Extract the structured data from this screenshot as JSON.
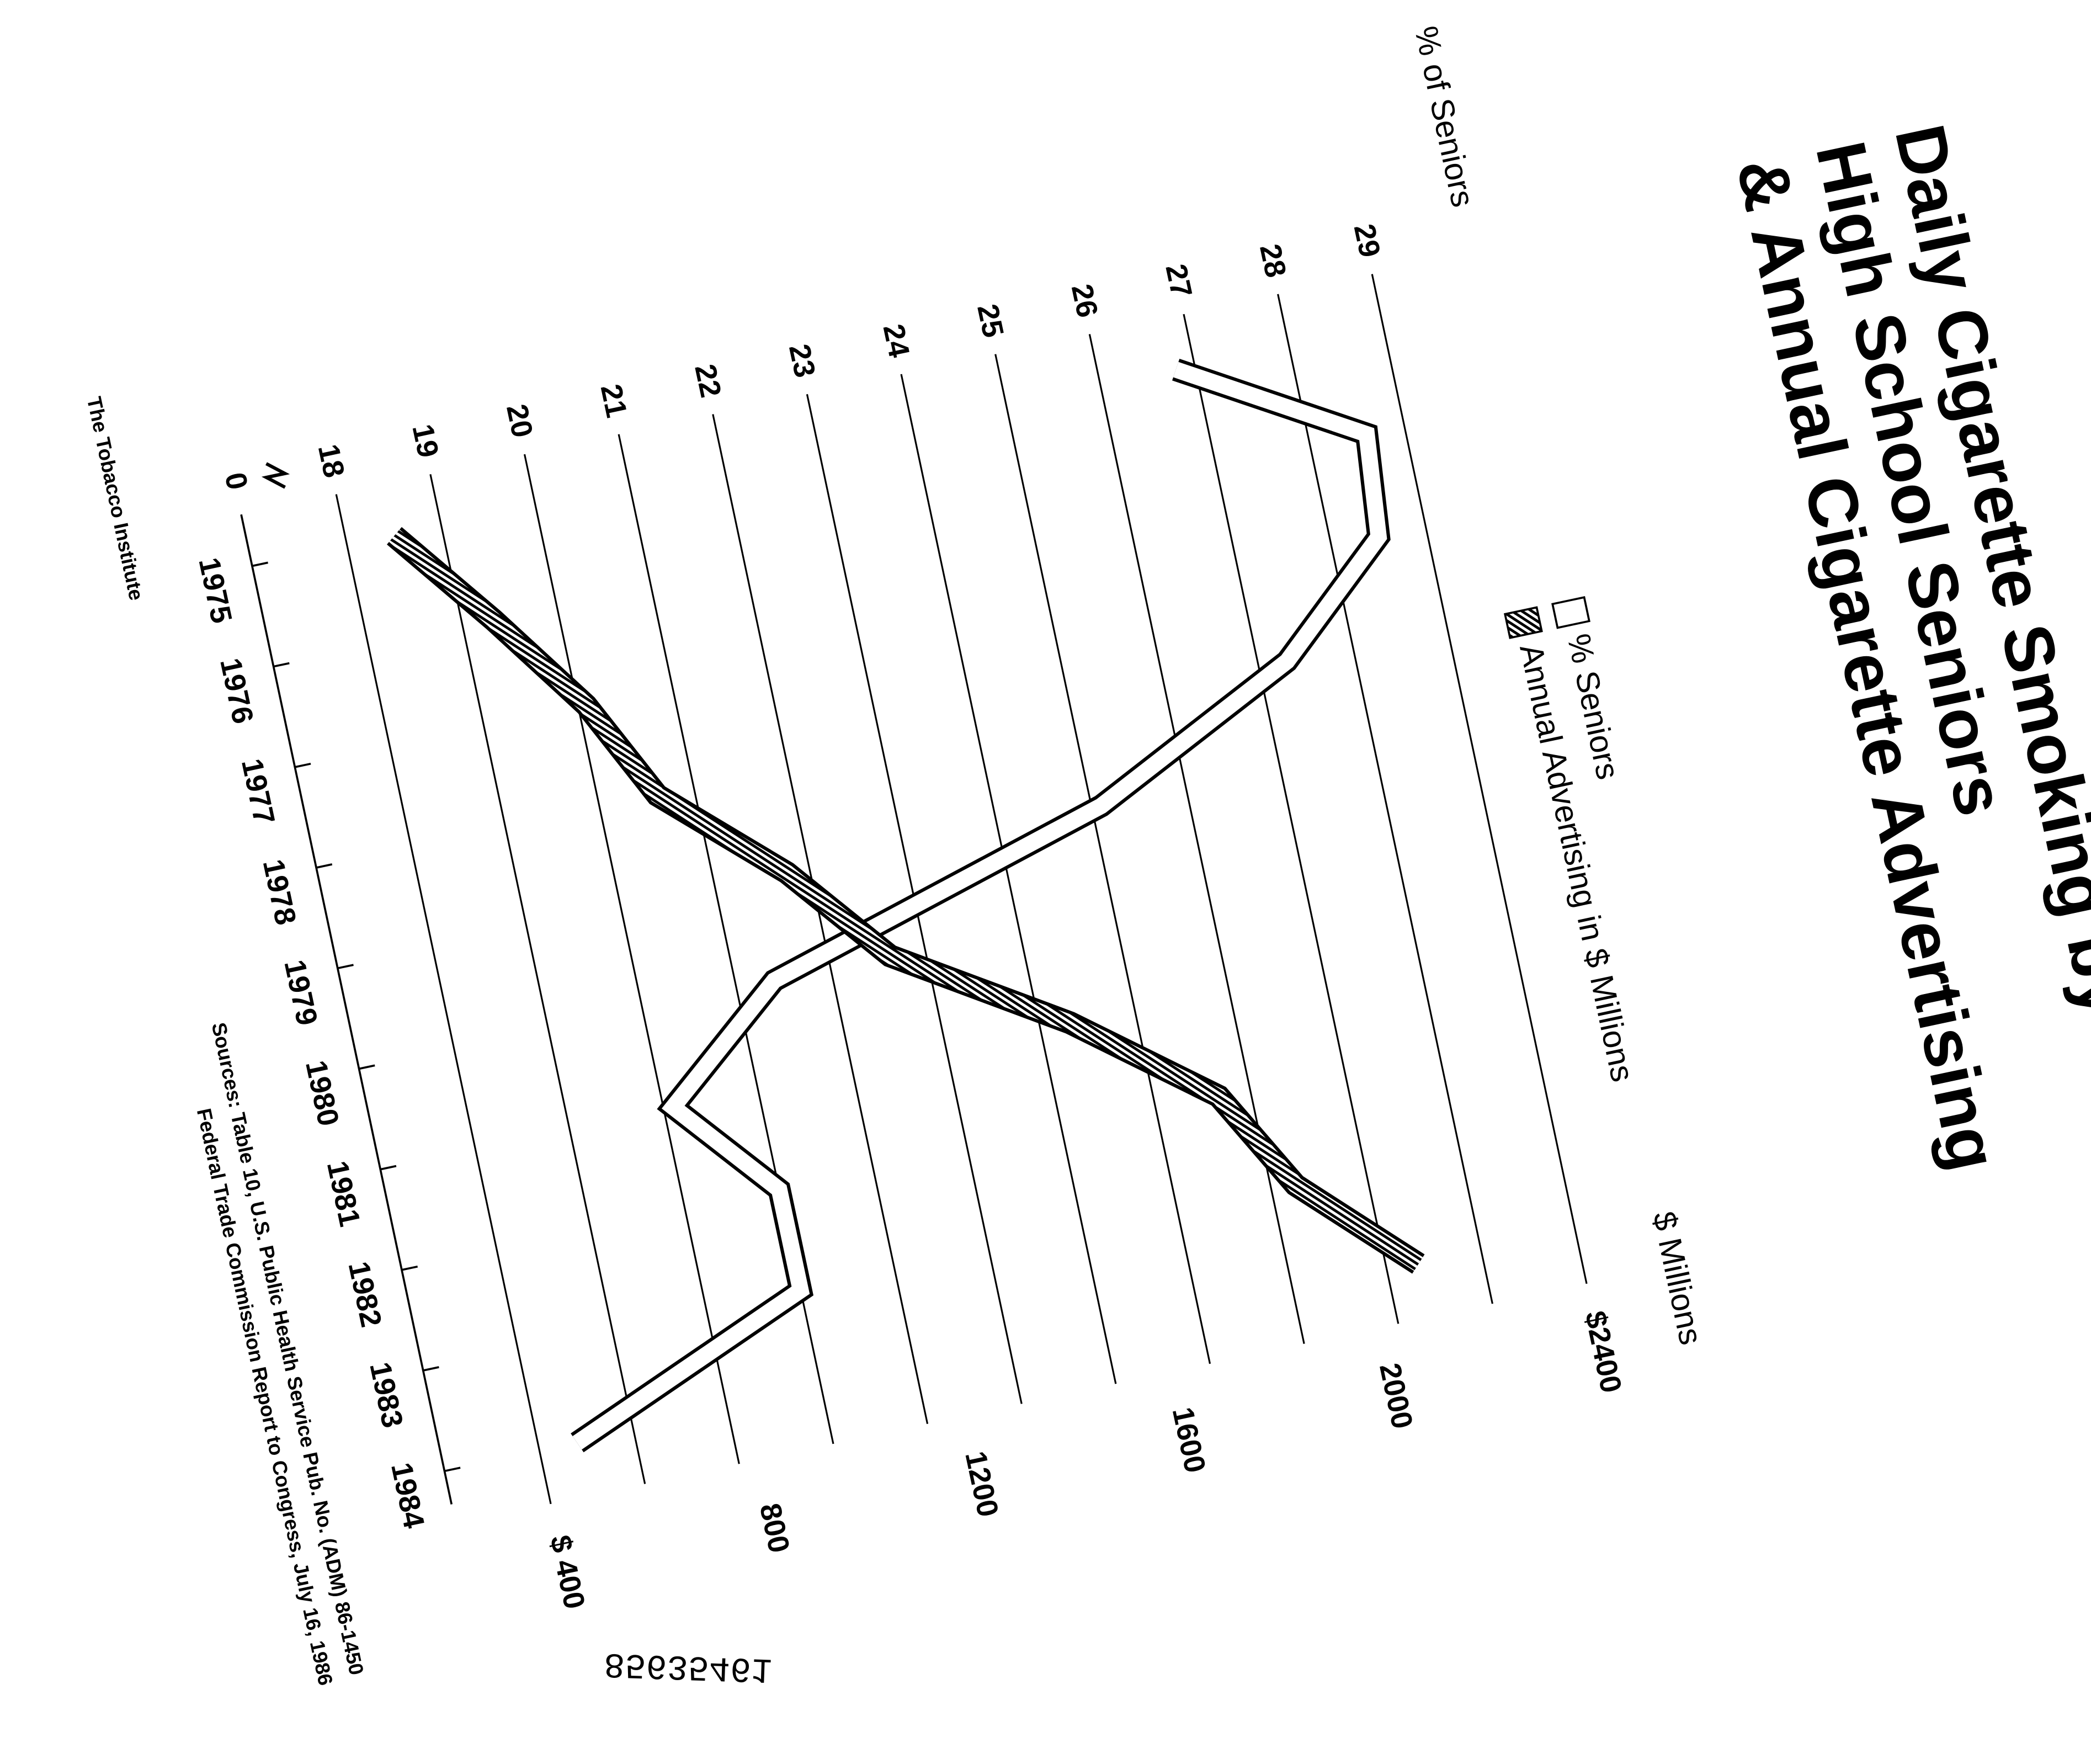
{
  "chart_data": {
    "type": "line",
    "title_lines": [
      "Daily Cigarette Smoking by",
      "High School Seniors",
      "& Annual Cigarette Advertising"
    ],
    "y_label": "% of Seniors",
    "y2_label": "$ Millions",
    "y_break_label": "0",
    "categories": [
      "1975",
      "1976",
      "1977",
      "1978",
      "1979",
      "1980",
      "1981",
      "1982",
      "1983",
      "1984"
    ],
    "ylim": [
      18,
      29
    ],
    "yticks": [
      18,
      19,
      20,
      21,
      22,
      23,
      24,
      25,
      26,
      27,
      28,
      29
    ],
    "y2lim": [
      400,
      2400
    ],
    "y2ticks": [
      {
        "value": 400,
        "label": "$ 400"
      },
      800,
      1200,
      1600,
      2000,
      {
        "value": 2400,
        "label": "$2400"
      }
    ],
    "grid": true,
    "series": [
      {
        "name": "% Seniors",
        "color": "#ffffff",
        "values": [
          26.8,
          28.6,
          28.5,
          27.3,
          25.1,
          21.4,
          20.1,
          21.0,
          21.0,
          18.4
        ]
      },
      {
        "name": "Annual Advertising in $ Millions",
        "color": "#000000",
        "axis": "y2",
        "values": [
          491,
          641,
          779,
          875,
          1084,
          1242,
          1548,
          1794,
          1901,
          2097
        ]
      }
    ],
    "sources": [
      "Sources: Table 10, U.S. Public Health Service Pub. No. (ADM) 86-1450",
      "Federal Trade Commission Report to Congress, July 16, 1986"
    ],
    "publisher": "The Tobacco Institute",
    "document_id": "85635461"
  }
}
